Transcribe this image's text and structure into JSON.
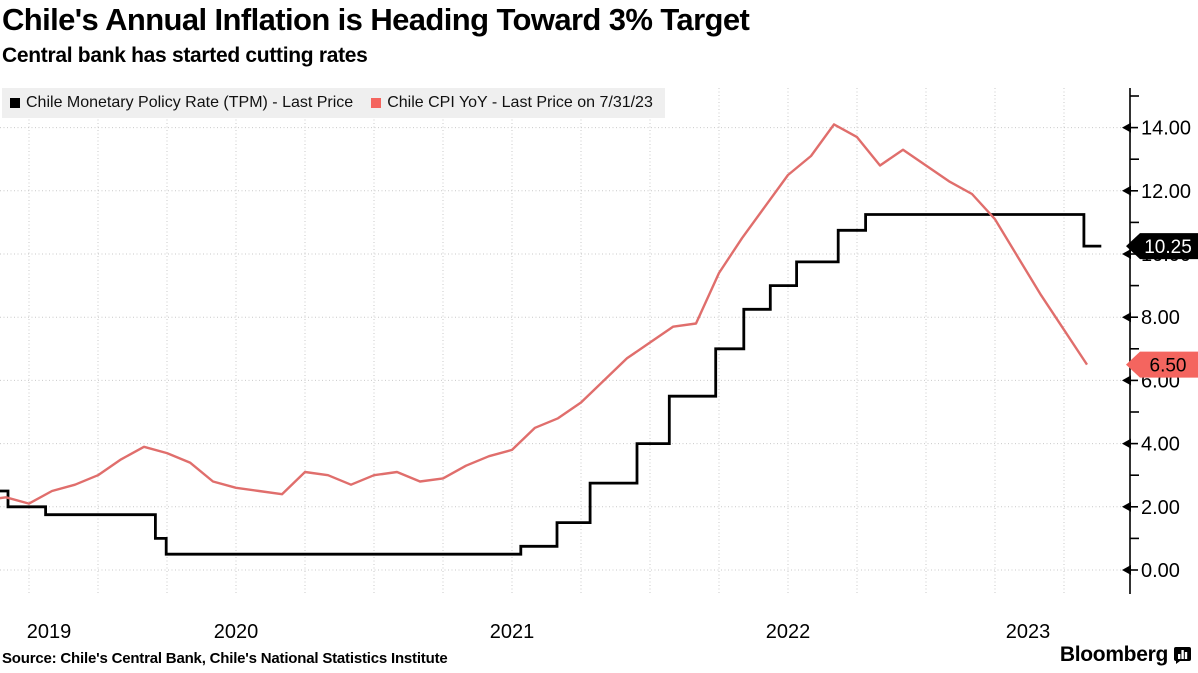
{
  "header": {
    "title": "Chile's Annual Inflation is Heading Toward 3% Target",
    "subtitle": "Central bank has started cutting rates"
  },
  "legend": {
    "items": [
      {
        "label": "Chile Monetary Policy Rate (TPM) - Last Price",
        "color": "#000000"
      },
      {
        "label": "Chile CPI YoY - Last Price on 7/31/23",
        "color": "#f4655f"
      }
    ]
  },
  "footer": {
    "source": "Source: Chile's Central Bank, Chile's National Statistics Institute",
    "brand": "Bloomberg"
  },
  "chart_data": {
    "type": "line",
    "title": "Chile's Annual Inflation is Heading Toward 3% Target",
    "grid": "dotted",
    "legend_position": "top-left",
    "x_axis": {
      "start_decimal_year": 2019.645,
      "end_decimal_year": 2023.739,
      "year_labels": [
        "2019",
        "2020",
        "2021",
        "2022",
        "2023"
      ],
      "grid_start": 2019.75,
      "grid_end": 2023.5,
      "grid_interval_years": 0.25
    },
    "y_axis": {
      "visible_range": [
        -1.2,
        15.25
      ],
      "major_ticks": [
        {
          "value": 14,
          "label": "14.00"
        },
        {
          "value": 12,
          "label": "12.00"
        },
        {
          "value": 10,
          "label": "10.00"
        },
        {
          "value": 8,
          "label": "8.00"
        },
        {
          "value": 6,
          "label": "6.00"
        },
        {
          "value": 4,
          "label": "4.00"
        },
        {
          "value": 2,
          "label": "2.00"
        },
        {
          "value": 0,
          "label": "0.00"
        }
      ],
      "minor_tick_values": [
        15,
        13,
        11,
        9,
        7,
        5,
        3,
        1
      ]
    },
    "series": [
      {
        "name": "Chile Monetary Policy Rate (TPM) - Last Price",
        "type": "step",
        "color": "#000000",
        "line_width": 2.8,
        "points": [
          [
            2019.5,
            2.5
          ],
          [
            2019.674,
            2.0
          ],
          [
            2019.81,
            1.75
          ],
          [
            2020.208,
            1.0
          ],
          [
            2020.247,
            0.5
          ],
          [
            2021.532,
            0.75
          ],
          [
            2021.663,
            1.5
          ],
          [
            2021.783,
            2.75
          ],
          [
            2021.953,
            4.0
          ],
          [
            2022.07,
            5.5
          ],
          [
            2022.238,
            7.0
          ],
          [
            2022.34,
            8.25
          ],
          [
            2022.436,
            9.0
          ],
          [
            2022.531,
            9.75
          ],
          [
            2022.682,
            10.75
          ],
          [
            2022.781,
            11.25
          ],
          [
            2023.572,
            10.25
          ]
        ],
        "end_decimal_year": 2023.635,
        "last_price": {
          "label": "10.25",
          "value": 10.25,
          "badge_bg": "#000000",
          "badge_fg": "#ffffff"
        }
      },
      {
        "name": "Chile CPI YoY - Last Price on 7/31/23",
        "type": "line",
        "color": "#e06e6c",
        "line_width": 2.4,
        "start": {
          "year": 2019,
          "month": 7
        },
        "monthly_values": [
          2.2,
          2.3,
          2.1,
          2.5,
          2.7,
          3.0,
          3.5,
          3.9,
          3.7,
          3.4,
          2.8,
          2.6,
          2.5,
          2.4,
          3.1,
          3.0,
          2.7,
          3.0,
          3.1,
          2.8,
          2.9,
          3.3,
          3.6,
          3.8,
          4.5,
          4.8,
          5.3,
          6.0,
          6.7,
          7.2,
          7.7,
          7.8,
          9.4,
          10.5,
          11.5,
          12.5,
          13.1,
          14.1,
          13.7,
          12.8,
          13.3,
          12.8,
          12.3,
          11.9,
          11.1,
          9.9,
          8.7,
          7.6,
          6.5
        ],
        "last_price": {
          "label": "6.50",
          "value": 6.5,
          "badge_bg": "#f4655f",
          "badge_fg": "#000000"
        }
      }
    ]
  }
}
